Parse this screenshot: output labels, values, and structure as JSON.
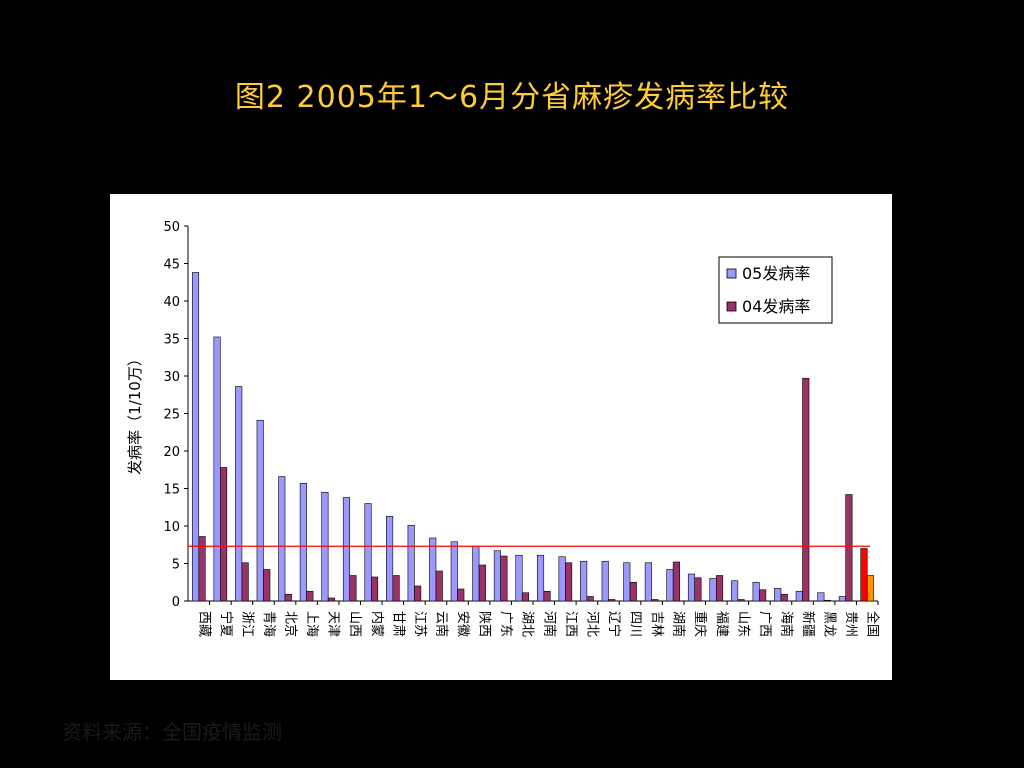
{
  "slide": {
    "title": "图2 2005年1～6月分省麻疹发病率比较",
    "source": "资料来源：全国疫情监测"
  },
  "colors": {
    "background": "#000000",
    "title": "#FFCC33",
    "series_05": "#9999FF",
    "series_04": "#993366",
    "national_05": "#FF0000",
    "national_04": "#FF9900",
    "reference_line": "#FF0000"
  },
  "chart_data": {
    "type": "bar",
    "title": "",
    "xlabel": "",
    "ylabel": "发病率（1/10万）",
    "ylim": [
      0,
      50
    ],
    "yticks": [
      0,
      5,
      10,
      15,
      20,
      25,
      30,
      35,
      40,
      45,
      50
    ],
    "legend_position": "top-right",
    "reference_line": 7.3,
    "categories": [
      "西藏",
      "宁夏",
      "浙江",
      "青海",
      "北京",
      "上海",
      "天津",
      "山西",
      "内蒙",
      "甘肃",
      "江苏",
      "云南",
      "安徽",
      "陕西",
      "广东",
      "湖北",
      "河南",
      "江西",
      "河北",
      "辽宁",
      "四川",
      "吉林",
      "湖南",
      "重庆",
      "福建",
      "山东",
      "广西",
      "海南",
      "新疆",
      "黑龙",
      "贵州",
      "全国"
    ],
    "series": [
      {
        "name": "05发病率",
        "values": [
          43.8,
          35.2,
          28.6,
          24.1,
          16.6,
          15.7,
          14.5,
          13.8,
          13.0,
          11.3,
          10.1,
          8.4,
          7.9,
          7.3,
          6.7,
          6.1,
          6.1,
          5.9,
          5.3,
          5.3,
          5.1,
          5.1,
          4.2,
          3.6,
          3.0,
          2.7,
          2.5,
          1.7,
          1.3,
          1.1,
          0.6,
          7.0
        ]
      },
      {
        "name": "04发病率",
        "values": [
          8.6,
          17.8,
          5.1,
          4.2,
          0.9,
          1.3,
          0.4,
          3.4,
          3.2,
          3.4,
          2.0,
          4.0,
          1.6,
          4.8,
          6.0,
          1.1,
          1.3,
          5.1,
          0.6,
          0.2,
          2.5,
          0.2,
          5.2,
          3.1,
          3.4,
          0.2,
          1.5,
          0.9,
          29.7,
          0.1,
          14.2,
          3.4
        ]
      }
    ]
  }
}
